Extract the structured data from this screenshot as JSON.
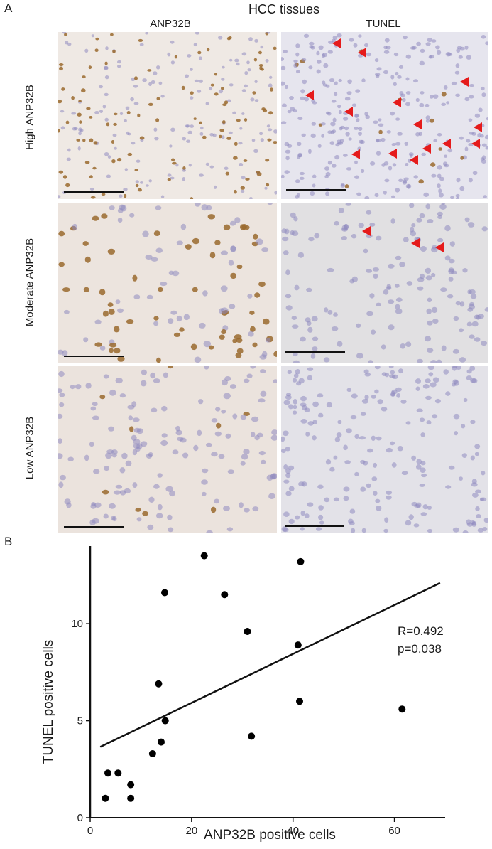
{
  "panel_a": {
    "letter": "A",
    "title": "HCC tissues",
    "columns": [
      "ANP32B",
      "TUNEL"
    ],
    "rows": [
      "High ANP32B",
      "Moderate ANP32B",
      "Low ANP32B"
    ],
    "colors": {
      "brown": "#9a6a2e",
      "purple": "#8f8ac0",
      "arrow": "#e51b1b"
    }
  },
  "panel_b": {
    "letter": "B"
  },
  "chart_data": {
    "type": "scatter",
    "xlabel": "ANP32B positive cells",
    "ylabel": "TUNEL positive cells",
    "xlim": [
      0,
      70
    ],
    "ylim": [
      0,
      14
    ],
    "xticks": [
      0,
      20,
      40,
      60
    ],
    "yticks": [
      0,
      5,
      10
    ],
    "points": [
      [
        3.0,
        1.0
      ],
      [
        3.5,
        2.3
      ],
      [
        5.5,
        2.3
      ],
      [
        8.0,
        1.7
      ],
      [
        8.0,
        1.0
      ],
      [
        12.3,
        3.3
      ],
      [
        13.5,
        6.9
      ],
      [
        14.0,
        3.9
      ],
      [
        14.7,
        11.6
      ],
      [
        14.8,
        5.0
      ],
      [
        22.5,
        13.5
      ],
      [
        26.5,
        11.5
      ],
      [
        31.0,
        9.6
      ],
      [
        31.8,
        4.2
      ],
      [
        41.0,
        8.9
      ],
      [
        41.3,
        6.0
      ],
      [
        41.5,
        13.2
      ],
      [
        61.5,
        5.6
      ]
    ],
    "regression": {
      "x": [
        2,
        69
      ],
      "y": [
        3.65,
        12.1
      ]
    },
    "annotations": [
      "R=0.492",
      "p=0.038"
    ],
    "grid": false
  }
}
